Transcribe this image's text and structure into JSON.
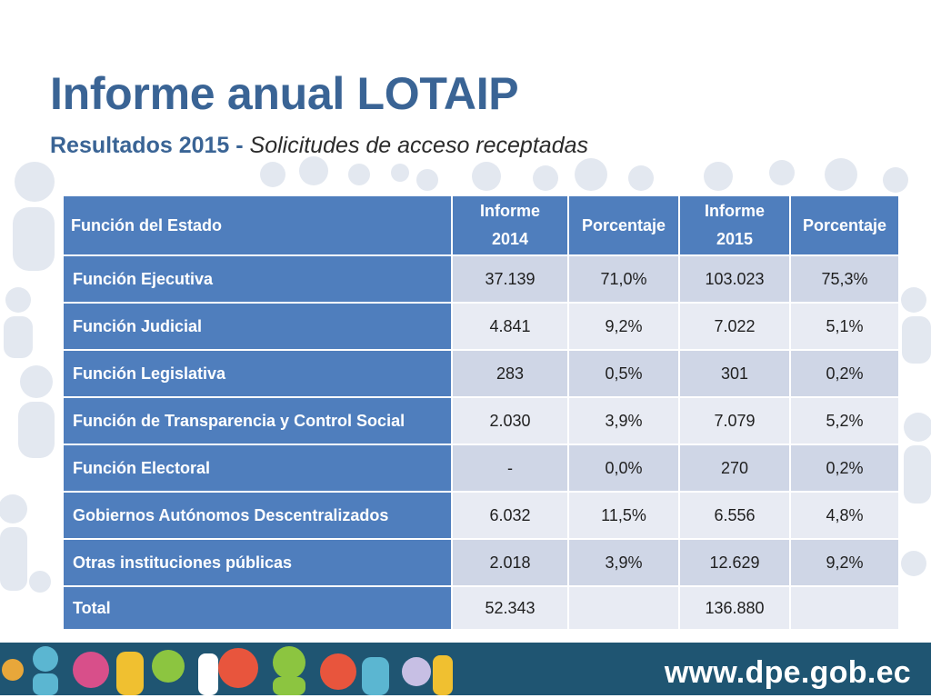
{
  "slide": {
    "title": "Informe anual LOTAIP",
    "subtitle_bold": "Resultados 2015 -",
    "subtitle_italic": "Solicitudes de acceso receptadas"
  },
  "table": {
    "headers": [
      "Función del Estado",
      "Informe 2014",
      "Porcentaje",
      "Informe 2015",
      "Porcentaje"
    ],
    "rows": [
      [
        "Función Ejecutiva",
        "37.139",
        "71,0%",
        "103.023",
        "75,3%"
      ],
      [
        "Función Judicial",
        "4.841",
        "9,2%",
        "7.022",
        "5,1%"
      ],
      [
        "Función Legislativa",
        "283",
        "0,5%",
        "301",
        "0,2%"
      ],
      [
        "Función de Transparencia y Control Social",
        "2.030",
        "3,9%",
        "7.079",
        "5,2%"
      ],
      [
        "Función Electoral",
        "-",
        "0,0%",
        "270",
        "0,2%"
      ],
      [
        "Gobiernos Autónomos Descentralizados",
        "6.032",
        "11,5%",
        "6.556",
        "4,8%"
      ],
      [
        "Otras instituciones públicas",
        "2.018",
        "3,9%",
        "12.629",
        "9,2%"
      ],
      [
        "Total",
        "52.343",
        "",
        "136.880",
        ""
      ]
    ]
  },
  "footer": {
    "url": "www.dpe.gob.ec"
  },
  "colors": {
    "title": "#3a6495",
    "header_fill": "#4f7ebd",
    "row_odd": "#cfd6e6",
    "row_even": "#e8ebf3",
    "footer_bar": "#1f5572"
  }
}
